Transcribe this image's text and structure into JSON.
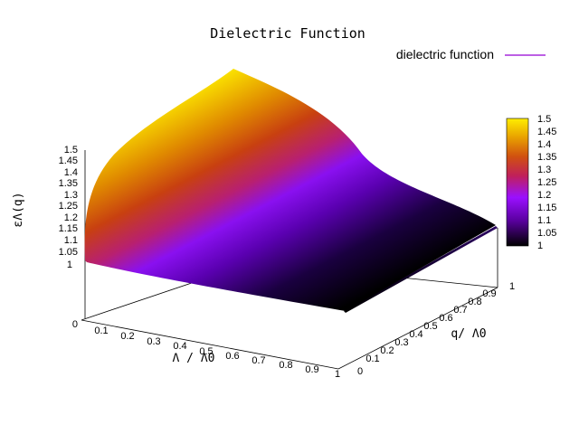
{
  "chart_data": {
    "type": "surface",
    "title": "Dielectric Function",
    "xlabel": "Λ / Λ0",
    "ylabel": "q/ Λ0",
    "zlabel": "εΛ(q)",
    "legend": {
      "label": "dielectric function",
      "color": "#9400d3",
      "placement": "top-right"
    },
    "xlim": [
      0,
      1
    ],
    "ylim": [
      0,
      1
    ],
    "zlim": [
      0,
      1.5
    ],
    "x_ticks": [
      "0.1",
      "0.2",
      "0.3",
      "0.4",
      "0.5",
      "0.6",
      "0.7",
      "0.8",
      "0.9",
      "1"
    ],
    "y_ticks": [
      "0",
      "0.1",
      "0.2",
      "0.3",
      "0.4",
      "0.5",
      "0.6",
      "0.7",
      "0.8",
      "0.9",
      "1"
    ],
    "z_ticks": [
      "0",
      "1",
      "1.05",
      "1.1",
      "1.15",
      "1.2",
      "1.25",
      "1.3",
      "1.35",
      "1.4",
      "1.45",
      "1.5"
    ],
    "colorbar": {
      "range": [
        1,
        1.5
      ],
      "ticks": [
        "1",
        "1.05",
        "1.1",
        "1.15",
        "1.2",
        "1.25",
        "1.3",
        "1.35",
        "1.4",
        "1.45",
        "1.5"
      ],
      "palette": "black-purple-red-yellow"
    },
    "grid": false,
    "surface": {
      "description_points": [
        {
          "x": 0,
          "y": 0,
          "z": 1.0
        },
        {
          "x": 1,
          "y": 0,
          "z": 1.0
        },
        {
          "x": 0,
          "y": 1,
          "z": 1.5
        },
        {
          "x": 1,
          "y": 1,
          "z": 1.0
        },
        {
          "x": 0.5,
          "y": 1,
          "z": 1.1
        }
      ]
    }
  }
}
